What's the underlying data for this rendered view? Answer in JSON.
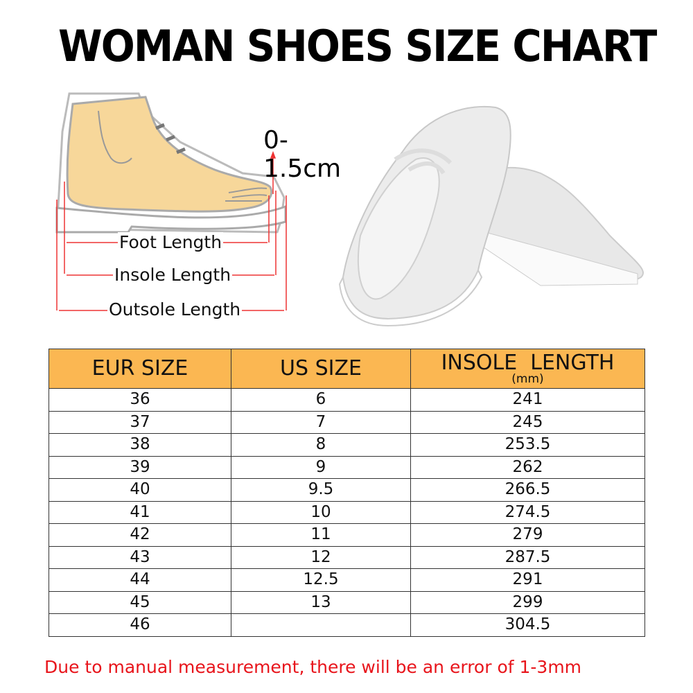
{
  "title": "WOMAN SHOES SIZE CHART",
  "diagram": {
    "gap_label": "0-1.5cm",
    "foot_length": "Foot Length",
    "insole_length": "Insole Length",
    "outsole_length": "Outsole Length"
  },
  "table": {
    "headers": [
      "EUR SIZE",
      "US SIZE",
      "INSOLE  LENGTH"
    ],
    "header_unit": "(mm)",
    "header_color": "#fbb752",
    "rows": [
      [
        "36",
        "6",
        "241"
      ],
      [
        "37",
        "7",
        "245"
      ],
      [
        "38",
        "8",
        "253.5"
      ],
      [
        "39",
        "9",
        "262"
      ],
      [
        "40",
        "9.5",
        "266.5"
      ],
      [
        "41",
        "10",
        "274.5"
      ],
      [
        "42",
        "11",
        "279"
      ],
      [
        "43",
        "12",
        "287.5"
      ],
      [
        "44",
        "12.5",
        "291"
      ],
      [
        "45",
        "13",
        "299"
      ],
      [
        "46",
        "",
        "304.5"
      ]
    ]
  },
  "note": "Due to manual measurement, there will be an error of 1-3mm",
  "note_color": "#e8141b"
}
